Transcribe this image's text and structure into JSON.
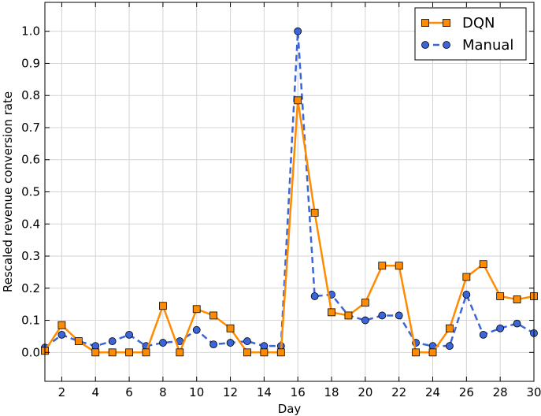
{
  "chart_data": {
    "type": "line",
    "title": "",
    "xlabel": "Day",
    "ylabel": "Rescaled revenue conversion rate",
    "xlim": [
      1,
      30
    ],
    "ylim": [
      -0.09,
      1.09
    ],
    "x_ticks": [
      2,
      4,
      6,
      8,
      10,
      12,
      14,
      16,
      18,
      20,
      22,
      24,
      26,
      28,
      30
    ],
    "y_ticks": [
      0.0,
      0.1,
      0.2,
      0.3,
      0.4,
      0.5,
      0.6,
      0.7,
      0.8,
      0.9,
      1.0
    ],
    "x_tick_labels": [
      "2",
      "4",
      "6",
      "8",
      "10",
      "12",
      "14",
      "16",
      "18",
      "20",
      "22",
      "24",
      "26",
      "28",
      "30"
    ],
    "y_tick_labels": [
      "0.0",
      "0.1",
      "0.2",
      "0.3",
      "0.4",
      "0.5",
      "0.6",
      "0.7",
      "0.8",
      "0.9",
      "1.0"
    ],
    "grid": true,
    "legend_position": "top-right",
    "x": [
      1,
      2,
      3,
      4,
      5,
      6,
      7,
      8,
      9,
      10,
      11,
      12,
      13,
      14,
      15,
      16,
      17,
      18,
      19,
      20,
      21,
      22,
      23,
      24,
      25,
      26,
      27,
      28,
      29,
      30
    ],
    "series": [
      {
        "name": "DQN",
        "color": "#ff8c00",
        "marker": "square",
        "line_style": "solid",
        "values": [
          0.005,
          0.085,
          0.035,
          0.0,
          0.0,
          0.0,
          0.0,
          0.145,
          0.0,
          0.135,
          0.115,
          0.075,
          0.0,
          0.0,
          0.0,
          0.785,
          0.435,
          0.125,
          0.115,
          0.155,
          0.27,
          0.27,
          0.0,
          0.0,
          0.075,
          0.235,
          0.275,
          0.175,
          0.165,
          0.175
        ]
      },
      {
        "name": "Manual",
        "color": "#3a66d9",
        "marker": "circle",
        "line_style": "dashed",
        "values": [
          0.015,
          0.055,
          0.035,
          0.02,
          0.035,
          0.055,
          0.02,
          0.03,
          0.035,
          0.07,
          0.025,
          0.03,
          0.035,
          0.02,
          0.02,
          1.0,
          0.175,
          0.18,
          0.115,
          0.1,
          0.115,
          0.115,
          0.03,
          0.02,
          0.02,
          0.18,
          0.055,
          0.075,
          0.09,
          0.06
        ]
      }
    ]
  }
}
